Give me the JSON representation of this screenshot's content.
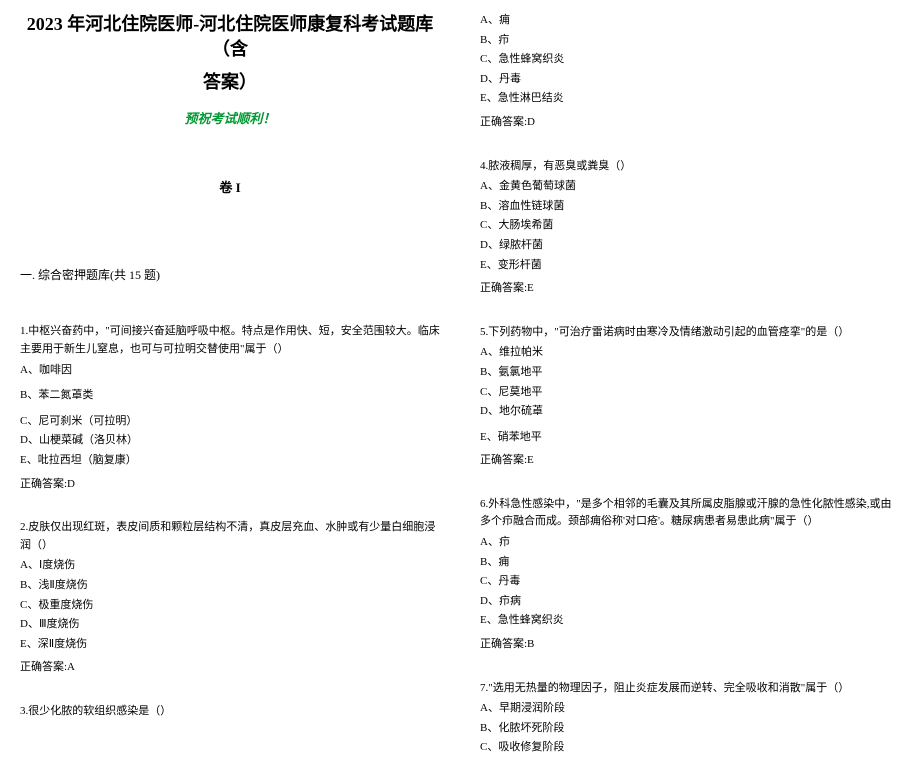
{
  "title_line1": "2023 年河北住院医师-河北住院医师康复科考试题库（含",
  "title_line2": "答案）",
  "wish": "预祝考试顺利！",
  "volume": "卷 I",
  "section_header": "一. 综合密押题库(共 15 题)",
  "left_questions": [
    {
      "text": "1.中枢兴奋药中，\"可间接兴奋延脑呼吸中枢。特点是作用快、短，安全范围较大。临床主要用于新生儿窒息，也可与可拉明交替使用\"属于（）",
      "options": [
        "A、咖啡因",
        "B、苯二氮䓬类",
        "C、尼可刹米（可拉明）",
        "D、山梗菜碱（洛贝林）",
        "E、吡拉西坦（脑复康）"
      ],
      "option_spacing": [
        true,
        true,
        false,
        false,
        false
      ],
      "answer": "正确答案:D"
    },
    {
      "text": "2.皮肤仅出现红斑，表皮间质和颗粒层结构不清，真皮层充血、水肿或有少量白细胞浸润（）",
      "options": [
        "A、Ⅰ度烧伤",
        "B、浅Ⅱ度烧伤",
        "C、极重度烧伤",
        "D、Ⅲ度烧伤",
        "E、深Ⅱ度烧伤"
      ],
      "option_spacing": [
        false,
        false,
        false,
        false,
        false
      ],
      "answer": "正确答案:A"
    },
    {
      "text": "3.很少化脓的软组织感染是（）",
      "options": [],
      "option_spacing": [],
      "answer": ""
    }
  ],
  "right_questions": [
    {
      "text": "",
      "options": [
        "A、痈",
        "B、疖",
        "C、急性蜂窝织炎",
        "D、丹毒",
        "E、急性淋巴结炎"
      ],
      "option_spacing": [
        false,
        false,
        false,
        false,
        false
      ],
      "answer": "正确答案:D"
    },
    {
      "text": "4.脓液稠厚，有恶臭或粪臭（）",
      "options": [
        "A、金黄色葡萄球菌",
        "B、溶血性链球菌",
        "C、大肠埃希菌",
        "D、绿脓杆菌",
        "E、变形杆菌"
      ],
      "option_spacing": [
        false,
        false,
        false,
        false,
        false
      ],
      "answer": "正确答案:E"
    },
    {
      "text": "5.下列药物中，\"可治疗雷诺病时由寒冷及情绪激动引起的血管痉挛\"的是（）",
      "options": [
        "A、维拉帕米",
        "B、氨氯地平",
        "C、尼莫地平",
        "D、地尔硫䓬",
        "E、硝苯地平"
      ],
      "option_spacing": [
        false,
        false,
        false,
        true,
        false
      ],
      "answer": "正确答案:E"
    },
    {
      "text": "6.外科急性感染中，\"是多个相邻的毛囊及其所属皮脂腺或汗腺的急性化脓性感染,或由多个疖融合而成。颈部痈俗称'对口疮'。糖尿病患者易患此病\"属于（）",
      "options": [
        "A、疖",
        "B、痈",
        "C、丹毒",
        "D、疖病",
        "E、急性蜂窝织炎"
      ],
      "option_spacing": [
        false,
        false,
        false,
        false,
        false
      ],
      "answer": "正确答案:B"
    },
    {
      "text": "7.\"选用无热量的物理因子，阻止炎症发展而逆转、完全吸收和消散\"属于（）",
      "options": [
        "A、早期浸润阶段",
        "B、化脓坏死阶段",
        "C、吸收修复阶段"
      ],
      "option_spacing": [
        false,
        false,
        false
      ],
      "answer": ""
    }
  ]
}
